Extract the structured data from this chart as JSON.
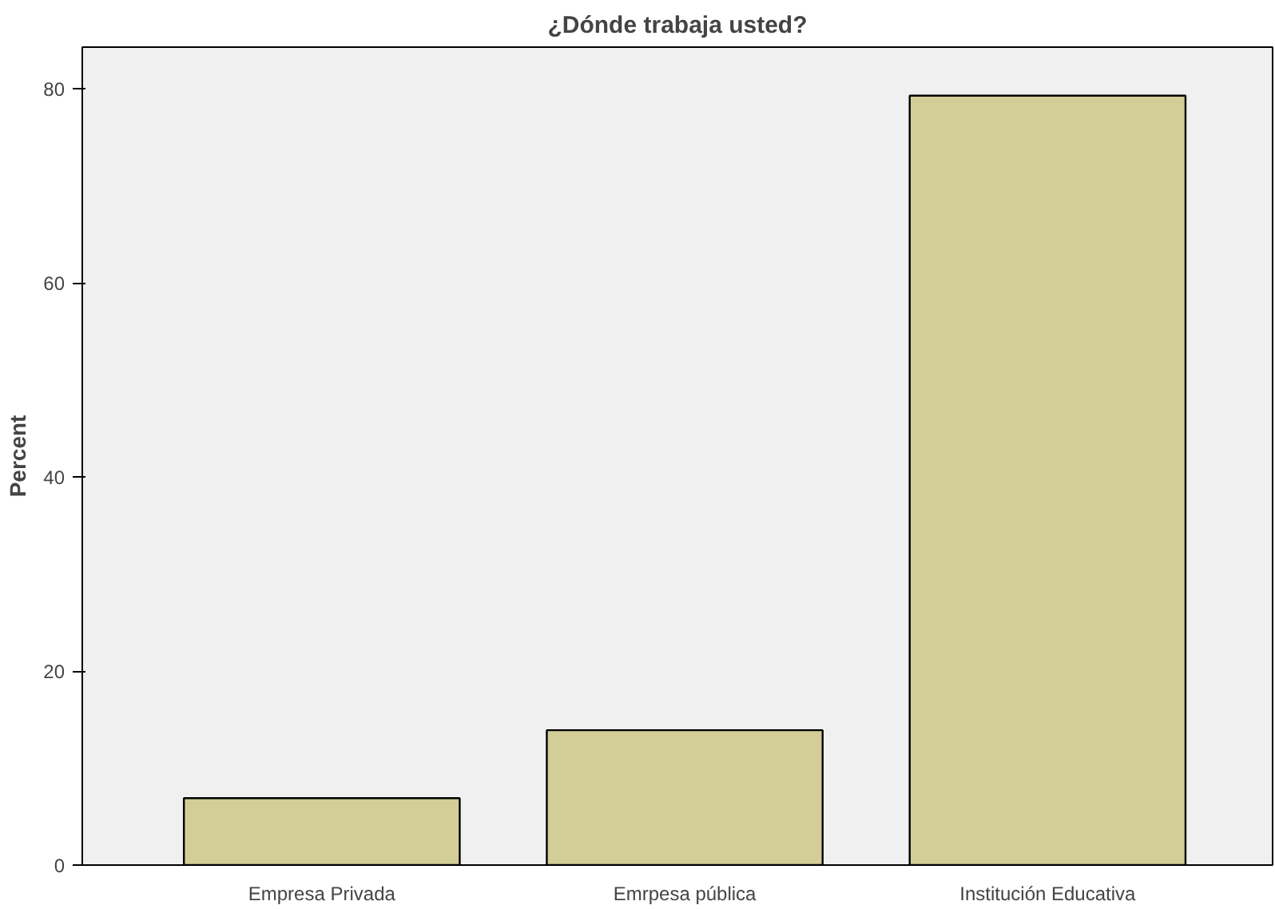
{
  "chart_data": {
    "type": "bar",
    "title": "¿Dónde trabaja usted?",
    "ylabel": "Percent",
    "categories": [
      "Empresa Privada",
      "Emrpesa pública",
      "Institución Educativa"
    ],
    "values": [
      6.9,
      13.9,
      79.3
    ],
    "color": "#d3ce97",
    "ylim": [
      0,
      84.3
    ],
    "yticks": [
      0,
      20,
      40,
      60,
      80
    ],
    "grid": false
  }
}
